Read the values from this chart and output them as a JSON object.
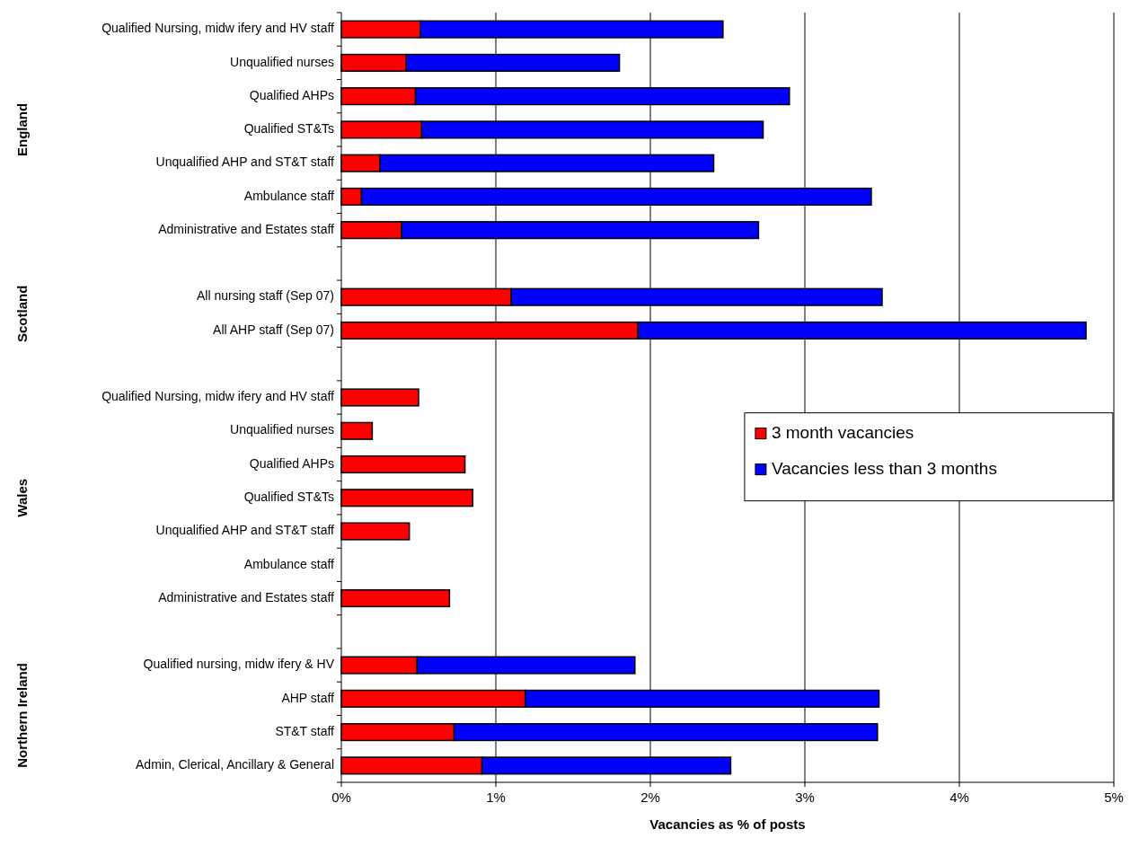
{
  "chart_data": {
    "type": "bar",
    "orientation": "horizontal",
    "stacked": true,
    "categories": [
      "Qualified Nursing, midw ifery and HV staff",
      "Unqualified nurses",
      "Qualified AHPs",
      "Qualified ST&Ts",
      "Unqualified AHP and ST&T staff",
      "Ambulance staff",
      "Administrative and Estates staff",
      null,
      "All nursing staff (Sep 07)",
      "All AHP staff (Sep 07)",
      null,
      "Qualified Nursing, midw ifery and HV staff",
      "Unqualified nurses",
      "Qualified AHPs",
      "Qualified ST&Ts",
      "Unqualified AHP and ST&T staff",
      "Ambulance staff",
      "Administrative and Estates staff",
      null,
      "Qualified nursing, midw ifery & HV",
      "AHP staff",
      "ST&T staff",
      "Admin, Clerical, Ancillary & General"
    ],
    "series": [
      {
        "name": "3 month vacancies",
        "color": "#ff0000",
        "values": [
          0.51,
          0.42,
          0.48,
          0.52,
          0.25,
          0.13,
          0.39,
          null,
          1.1,
          1.92,
          null,
          0.5,
          0.2,
          0.8,
          0.85,
          0.44,
          null,
          0.7,
          null,
          0.49,
          1.19,
          0.73,
          0.91
        ]
      },
      {
        "name": "Vacancies less than 3 months",
        "color": "#0000ff",
        "values": [
          1.96,
          1.38,
          2.42,
          2.21,
          2.16,
          3.3,
          2.31,
          null,
          2.4,
          2.9,
          null,
          null,
          null,
          null,
          null,
          null,
          null,
          null,
          null,
          1.41,
          2.29,
          2.74,
          1.61
        ]
      }
    ],
    "xlim": [
      0,
      5
    ],
    "xticks": [
      {
        "value": 0,
        "label": "0%"
      },
      {
        "value": 1,
        "label": "1%"
      },
      {
        "value": 2,
        "label": "2%"
      },
      {
        "value": 3,
        "label": "3%"
      },
      {
        "value": 4,
        "label": "4%"
      },
      {
        "value": 5,
        "label": "5%"
      }
    ],
    "xlabel": "Vacancies as % of posts",
    "annotations": [
      "England",
      "Scotland",
      "Wales",
      "Northern Ireland"
    ],
    "grid": "x",
    "legend": "right"
  }
}
